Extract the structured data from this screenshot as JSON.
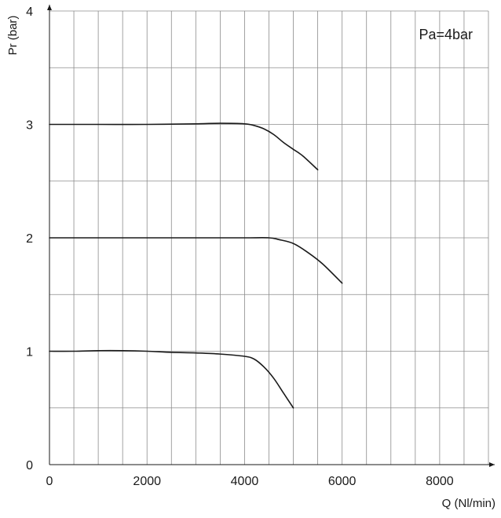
{
  "chart_data": {
    "type": "line",
    "annotation": "Pa=4bar",
    "xlabel": "Q (Nl/min)",
    "ylabel": "Pr (bar)",
    "xlim": [
      0,
      9000
    ],
    "ylim": [
      0,
      4
    ],
    "x_ticks": [
      "0",
      "2000",
      "4000",
      "6000",
      "8000"
    ],
    "y_ticks": [
      "0",
      "1",
      "2",
      "3",
      "4"
    ],
    "grid": true,
    "series": [
      {
        "points": [
          [
            0,
            1.0
          ],
          [
            500,
            1.0
          ],
          [
            1000,
            1.005
          ],
          [
            1500,
            1.005
          ],
          [
            2000,
            1.0
          ],
          [
            2500,
            0.99
          ],
          [
            3000,
            0.985
          ],
          [
            3500,
            0.975
          ],
          [
            4000,
            0.955
          ],
          [
            4200,
            0.93
          ],
          [
            4400,
            0.86
          ],
          [
            4600,
            0.76
          ],
          [
            4800,
            0.63
          ],
          [
            5000,
            0.5
          ]
        ]
      },
      {
        "points": [
          [
            0,
            2.0
          ],
          [
            1000,
            2.0
          ],
          [
            2000,
            2.0
          ],
          [
            3000,
            2.0
          ],
          [
            4000,
            2.0
          ],
          [
            4500,
            2.0
          ],
          [
            4700,
            1.985
          ],
          [
            5000,
            1.95
          ],
          [
            5300,
            1.87
          ],
          [
            5600,
            1.77
          ],
          [
            6000,
            1.6
          ]
        ]
      },
      {
        "points": [
          [
            0,
            3.0
          ],
          [
            1000,
            3.0
          ],
          [
            2000,
            3.0
          ],
          [
            3000,
            3.005
          ],
          [
            3500,
            3.01
          ],
          [
            4000,
            3.005
          ],
          [
            4200,
            2.99
          ],
          [
            4400,
            2.96
          ],
          [
            4600,
            2.91
          ],
          [
            4800,
            2.84
          ],
          [
            5000,
            2.78
          ],
          [
            5200,
            2.72
          ],
          [
            5500,
            2.6
          ]
        ]
      }
    ]
  }
}
